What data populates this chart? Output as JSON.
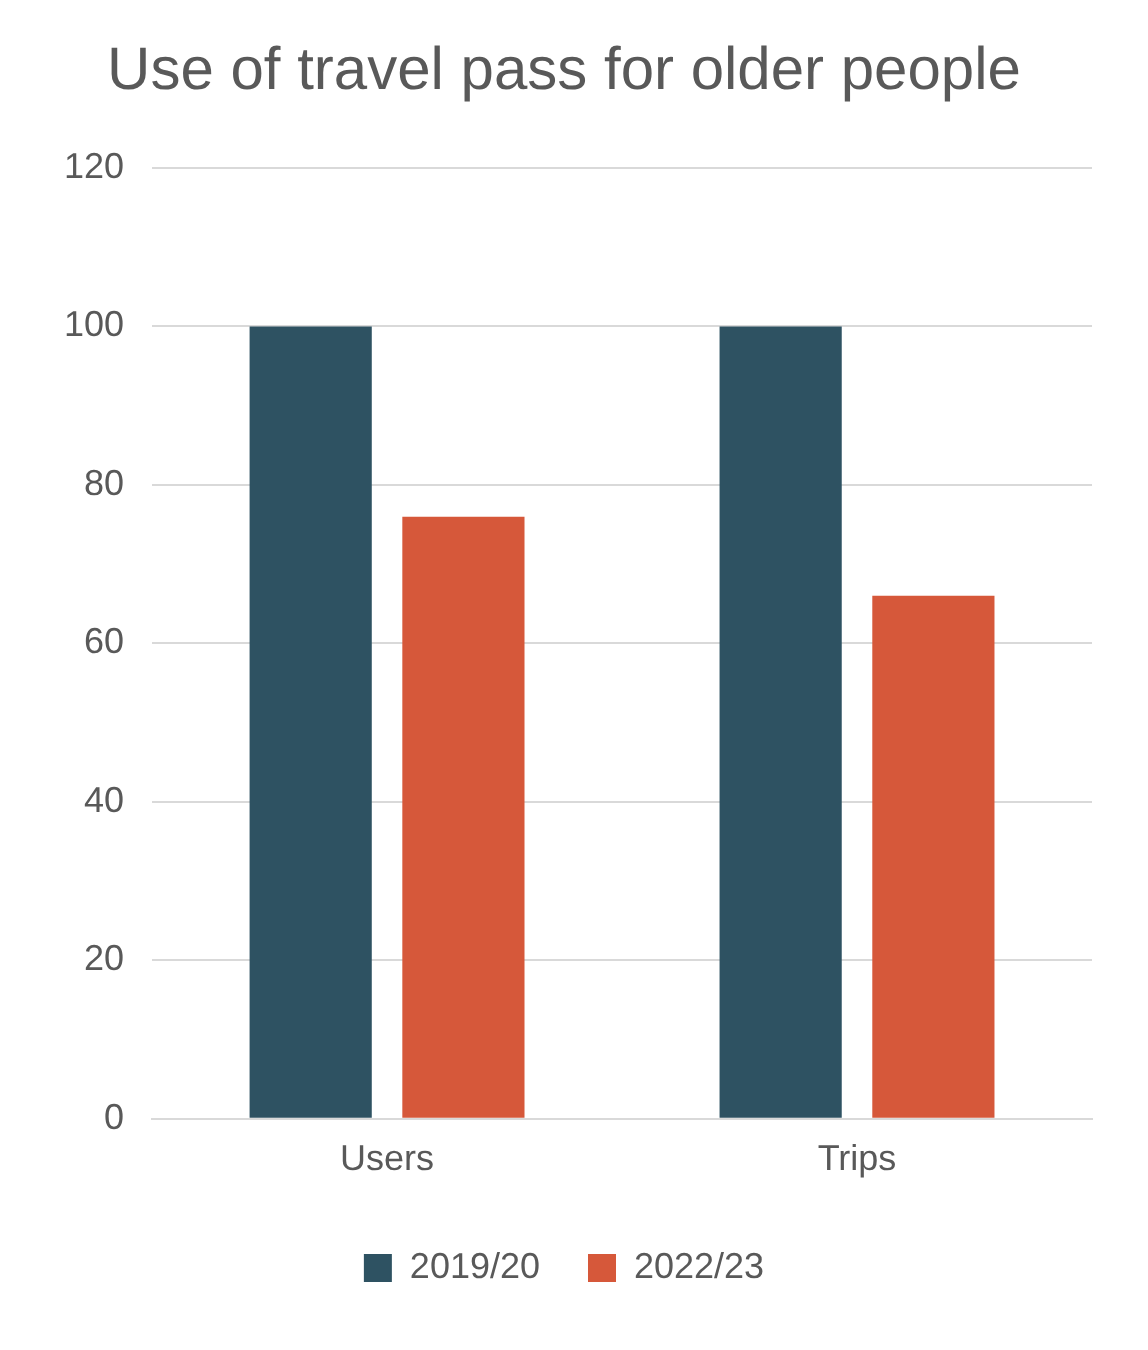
{
  "chart_data": {
    "type": "bar",
    "title": "Use of travel pass for older people",
    "categories": [
      "Users",
      "Trips"
    ],
    "series": [
      {
        "name": "2019/20",
        "color": "#2e5262",
        "values": [
          100,
          100
        ]
      },
      {
        "name": "2022/23",
        "color": "#d6583a",
        "values": [
          76,
          66
        ]
      }
    ],
    "ylim": [
      0,
      120
    ],
    "yticks": [
      0,
      20,
      40,
      60,
      80,
      100,
      120
    ],
    "grid": "y",
    "legend": "bottom"
  }
}
